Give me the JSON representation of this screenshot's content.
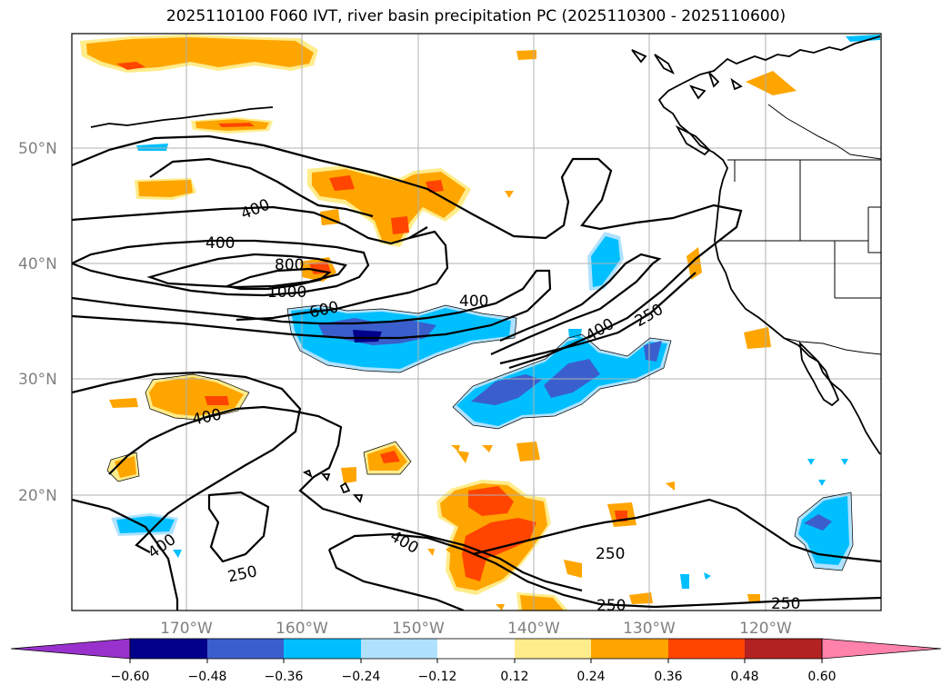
{
  "title": "2025110100 F060 IVT, river basin precipitation PC (2025110300 - 2025110600)",
  "lat_labels": [
    "50°N",
    "40°N",
    "30°N",
    "20°N"
  ],
  "lon_labels": [
    "170°W",
    "160°W",
    "150°W",
    "140°W",
    "130°W",
    "120°W"
  ],
  "contour_labels": [
    "400",
    "400",
    "800",
    "1000",
    "600",
    "400",
    "400",
    "250",
    "400",
    "400",
    "250",
    "400",
    "250",
    "250",
    "250"
  ],
  "colorbar": {
    "ticks": [
      "−0.60",
      "−0.48",
      "−0.36",
      "−0.24",
      "−0.12",
      "0.12",
      "0.24",
      "0.36",
      "0.48",
      "0.60"
    ],
    "colors": [
      "#9932cc",
      "#00008b",
      "#3a5fcd",
      "#00bfff",
      "#b0e2ff",
      "#ffffff",
      "#ffec8b",
      "#ffa500",
      "#ff4500",
      "#b22222",
      "#ff82ab"
    ]
  },
  "shading_colors": {
    "neg_light": "#b0e2ff",
    "neg_mid": "#00bfff",
    "neg_strong": "#3a5fcd",
    "neg_max": "#00008b",
    "pos_light": "#ffec8b",
    "pos_mid": "#ffa500",
    "pos_strong": "#ff4500"
  }
}
